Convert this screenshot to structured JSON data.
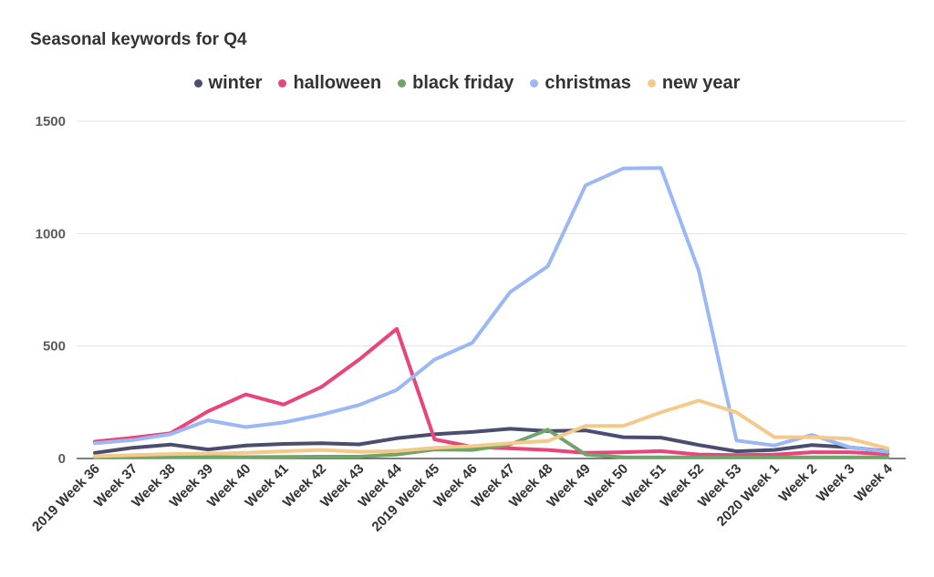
{
  "chart_data": {
    "type": "line",
    "title": "Seasonal keywords for Q4",
    "legend_position": "top",
    "grid": true,
    "ylim": [
      0,
      1500
    ],
    "yticks": [
      0,
      500,
      1000,
      1500
    ],
    "x": [
      "2019 Week 36",
      "Week 37",
      "Week 38",
      "Week 39",
      "Week 40",
      "Week 41",
      "Week 42",
      "Week 43",
      "Week 44",
      "2019 Week 45",
      "Week 46",
      "Week 47",
      "Week 48",
      "Week 49",
      "Week 50",
      "Week 51",
      "Week 52",
      "Week 53",
      "2020 Week 1",
      "Week 2",
      "Week 3",
      "Week 4"
    ],
    "series": [
      {
        "name": "winter",
        "color": "#4a4d6e",
        "values": [
          25,
          48,
          62,
          40,
          58,
          65,
          68,
          63,
          90,
          108,
          118,
          132,
          122,
          125,
          95,
          93,
          60,
          32,
          38,
          60,
          50,
          32
        ]
      },
      {
        "name": "halloween",
        "color": "#e8457a",
        "values": [
          75,
          92,
          112,
          210,
          285,
          240,
          318,
          440,
          577,
          85,
          52,
          45,
          38,
          25,
          28,
          33,
          18,
          15,
          17,
          28,
          28,
          20
        ]
      },
      {
        "name": "black friday",
        "color": "#71a46b",
        "values": [
          5,
          5,
          6,
          6,
          6,
          7,
          8,
          8,
          18,
          40,
          38,
          62,
          128,
          18,
          5,
          5,
          5,
          5,
          5,
          5,
          5,
          5
        ]
      },
      {
        "name": "christmas",
        "color": "#9bb8f4",
        "values": [
          68,
          82,
          108,
          170,
          140,
          160,
          195,
          238,
          305,
          440,
          515,
          740,
          855,
          1215,
          1290,
          1292,
          835,
          80,
          58,
          105,
          50,
          30
        ]
      },
      {
        "name": "new year",
        "color": "#f5c98a",
        "values": [
          10,
          15,
          20,
          22,
          25,
          32,
          38,
          30,
          33,
          48,
          55,
          68,
          78,
          145,
          145,
          205,
          258,
          205,
          95,
          95,
          88,
          45
        ]
      }
    ]
  }
}
